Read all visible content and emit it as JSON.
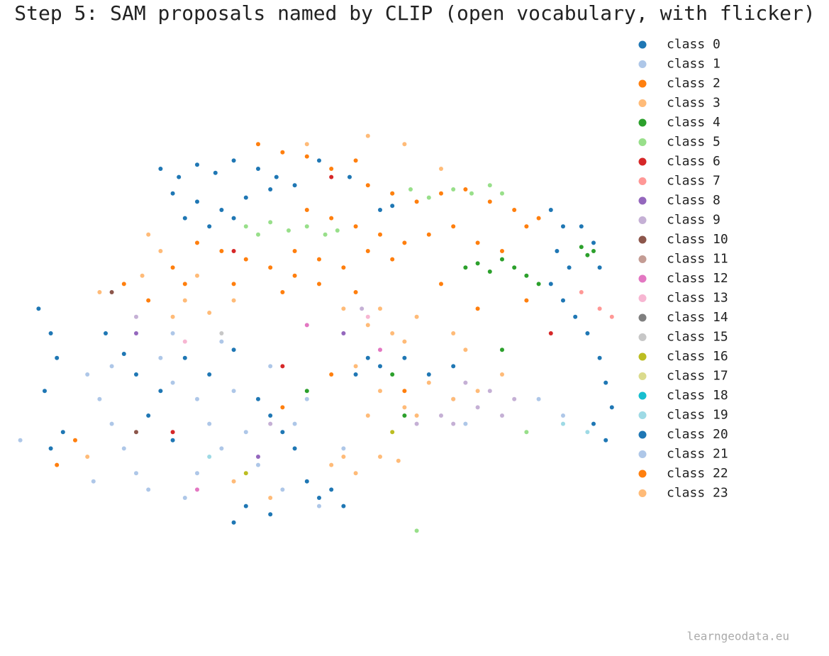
{
  "chart_data": {
    "type": "scatter",
    "title": "Step 5: SAM proposals named by CLIP (open vocabulary, with flicker)",
    "annotation": "learngeodata.eu",
    "xlim": [
      0,
      100
    ],
    "ylim": [
      0,
      100
    ],
    "legend": "upper right",
    "grid": false,
    "series": [
      {
        "name": "class 0",
        "color": "#1f77b4",
        "x": [],
        "y": []
      },
      {
        "name": "class 1",
        "color": "#aec7e8",
        "x": [],
        "y": []
      },
      {
        "name": "class 2",
        "color": "#ff7f0e",
        "x": [],
        "y": []
      },
      {
        "name": "class 3",
        "color": "#ffbb78",
        "x": [],
        "y": []
      },
      {
        "name": "class 4",
        "color": "#2ca02c",
        "x": [
          74,
          76,
          78,
          80,
          82,
          84,
          93,
          94,
          95,
          86,
          62,
          48,
          80,
          64
        ],
        "y": [
          66,
          67,
          65,
          68,
          66,
          64,
          71,
          69,
          70,
          62,
          40,
          36,
          46,
          30
        ]
      },
      {
        "name": "class 5",
        "color": "#98df8a",
        "x": [
          38,
          40,
          42,
          45,
          48,
          51,
          53,
          62,
          65,
          68,
          72,
          75,
          78,
          80,
          66,
          84
        ],
        "y": [
          76,
          74,
          77,
          75,
          76,
          74,
          75,
          84,
          85,
          83,
          85,
          84,
          86,
          84,
          2,
          26
        ]
      },
      {
        "name": "class 6",
        "color": "#d62728",
        "x": [
          88,
          36,
          26,
          44,
          52
        ],
        "y": [
          50,
          70,
          26,
          42,
          88
        ]
      },
      {
        "name": "class 7",
        "color": "#ff9896",
        "x": [
          96,
          98,
          93
        ],
        "y": [
          56,
          54,
          60
        ]
      },
      {
        "name": "class 8",
        "color": "#9467bd",
        "x": [
          20,
          54,
          40
        ],
        "y": [
          50,
          50,
          20
        ]
      },
      {
        "name": "class 9",
        "color": "#c5b0d5",
        "x": [
          70,
          72,
          74,
          76,
          78,
          80,
          82,
          72,
          66,
          42,
          20,
          57
        ],
        "y": [
          30,
          34,
          38,
          32,
          36,
          30,
          34,
          28,
          28,
          28,
          54,
          56
        ]
      },
      {
        "name": "class 10",
        "color": "#8c564b",
        "x": [
          16,
          20
        ],
        "y": [
          60,
          26
        ]
      },
      {
        "name": "class 11",
        "color": "#c49c94",
        "x": [],
        "y": []
      },
      {
        "name": "class 12",
        "color": "#e377c2",
        "x": [
          30,
          48,
          60
        ],
        "y": [
          12,
          52,
          46
        ]
      },
      {
        "name": "class 13",
        "color": "#f7b6d2",
        "x": [
          58,
          28
        ],
        "y": [
          54,
          48
        ]
      },
      {
        "name": "class 14",
        "color": "#7f7f7f",
        "x": [],
        "y": []
      },
      {
        "name": "class 15",
        "color": "#c7c7c7",
        "x": [
          34
        ],
        "y": [
          50
        ]
      },
      {
        "name": "class 16",
        "color": "#bcbd22",
        "x": [
          38,
          62
        ],
        "y": [
          16,
          26
        ]
      },
      {
        "name": "class 17",
        "color": "#dbdb8d",
        "x": [],
        "y": []
      },
      {
        "name": "class 18",
        "color": "#17becf",
        "x": [],
        "y": []
      },
      {
        "name": "class 19",
        "color": "#9edae5",
        "x": [
          32,
          94,
          90
        ],
        "y": [
          20,
          26,
          28
        ]
      },
      {
        "name": "class 20",
        "color": "#1f77b4",
        "x": [
          24,
          27,
          30,
          33,
          36,
          40,
          43,
          26,
          30,
          34,
          38,
          28,
          32,
          36,
          42,
          46,
          50,
          55,
          60,
          62,
          88,
          90,
          89,
          91,
          88,
          90,
          92,
          94,
          96,
          97,
          98,
          95,
          97,
          93,
          95,
          96,
          15,
          18,
          20,
          24,
          22,
          26,
          28,
          32,
          36,
          40,
          42,
          44,
          46,
          48,
          50,
          38,
          36,
          42,
          52,
          54,
          56,
          60,
          64,
          68,
          72,
          58,
          4,
          6,
          7,
          5,
          8,
          6
        ],
        "y": [
          90,
          88,
          91,
          89,
          92,
          90,
          88,
          84,
          82,
          80,
          83,
          78,
          76,
          78,
          85,
          86,
          92,
          88,
          80,
          81,
          80,
          76,
          70,
          66,
          62,
          58,
          54,
          50,
          44,
          38,
          32,
          28,
          24,
          76,
          72,
          66,
          50,
          45,
          40,
          36,
          30,
          24,
          44,
          40,
          46,
          34,
          30,
          26,
          22,
          14,
          10,
          8,
          4,
          6,
          12,
          8,
          40,
          42,
          44,
          40,
          42,
          44,
          56,
          50,
          44,
          36,
          26,
          22
        ]
      },
      {
        "name": "class 21",
        "color": "#aec7e8",
        "x": [
          12,
          14,
          16,
          18,
          20,
          13,
          24,
          26,
          30,
          32,
          34,
          30,
          36,
          38,
          40,
          44,
          46,
          48,
          22,
          28,
          26,
          34,
          50,
          16,
          42,
          74,
          86,
          90,
          54,
          1
        ],
        "y": [
          40,
          34,
          28,
          22,
          16,
          14,
          44,
          38,
          34,
          28,
          22,
          16,
          36,
          26,
          18,
          12,
          28,
          34,
          12,
          10,
          50,
          48,
          8,
          42,
          42,
          28,
          34,
          30,
          22,
          24
        ]
      },
      {
        "name": "class 22",
        "color": "#ff7f0e",
        "x": [
          40,
          44,
          48,
          52,
          56,
          58,
          62,
          66,
          70,
          74,
          78,
          82,
          84,
          86,
          48,
          52,
          56,
          60,
          64,
          68,
          72,
          76,
          80,
          30,
          34,
          38,
          42,
          46,
          50,
          54,
          58,
          62,
          26,
          28,
          36,
          44,
          50,
          56,
          70,
          76,
          84,
          18,
          22,
          46,
          52,
          64,
          7,
          10,
          44
        ],
        "y": [
          96,
          94,
          93,
          90,
          92,
          86,
          84,
          82,
          84,
          85,
          82,
          80,
          76,
          78,
          80,
          78,
          76,
          74,
          72,
          74,
          76,
          72,
          70,
          72,
          70,
          68,
          66,
          70,
          68,
          66,
          70,
          68,
          66,
          62,
          62,
          60,
          62,
          60,
          62,
          56,
          58,
          62,
          58,
          64,
          40,
          36,
          18,
          24,
          32
        ]
      },
      {
        "name": "class 23",
        "color": "#ffbb78",
        "x": [
          22,
          24,
          21,
          28,
          32,
          36,
          54,
          58,
          62,
          66,
          64,
          60,
          56,
          60,
          64,
          68,
          72,
          76,
          80,
          58,
          66,
          52,
          56,
          60,
          63,
          54,
          36,
          42,
          48,
          58,
          64,
          70,
          30,
          26,
          72,
          12,
          74,
          14
        ],
        "y": [
          74,
          70,
          64,
          58,
          55,
          58,
          56,
          52,
          50,
          54,
          48,
          56,
          42,
          36,
          32,
          38,
          34,
          36,
          40,
          30,
          30,
          18,
          16,
          20,
          19,
          20,
          14,
          10,
          96,
          98,
          96,
          90,
          64,
          54,
          50,
          20,
          46,
          60
        ]
      }
    ]
  }
}
